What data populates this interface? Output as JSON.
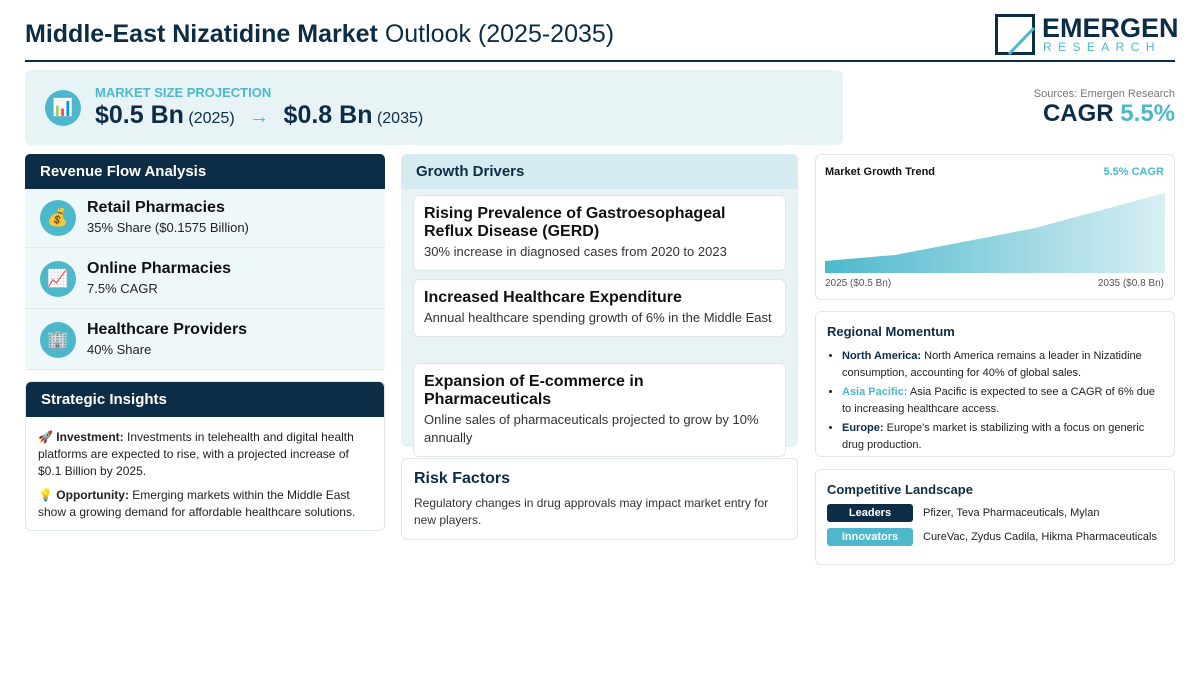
{
  "header": {
    "title_bold": "Middle-East Nizatidine Market",
    "title_rest": "Outlook (2025-2035)",
    "logo_name": "EMERGEN",
    "logo_sub": "RESEARCH"
  },
  "projection": {
    "icon": "📊",
    "label": "MARKET SIZE PROJECTION",
    "start_value": "$0.5 Bn",
    "start_year": "(2025)",
    "arrow": "→",
    "end_value": "$0.8 Bn",
    "end_year": "(2035)"
  },
  "sources": "Sources: Emergen Research",
  "cagr": {
    "label": "CAGR",
    "value": "5.5%"
  },
  "revenue_flow": {
    "title": "Revenue Flow Analysis",
    "items": [
      {
        "icon": "💰",
        "name": "Retail Pharmacies",
        "detail": "35% Share ($0.1575 Billion)"
      },
      {
        "icon": "📈",
        "name": "Online Pharmacies",
        "detail": "7.5% CAGR"
      },
      {
        "icon": "🏢",
        "name": "Healthcare Providers",
        "detail": "40% Share"
      }
    ]
  },
  "strategic_insights": {
    "title": "Strategic Insights",
    "items": [
      {
        "icon": "🚀",
        "label": "Investment:",
        "text": "Investments in telehealth and digital health platforms are expected to rise, with a projected increase of $0.1 Billion by 2025."
      },
      {
        "icon": "💡",
        "label": "Opportunity:",
        "text": "Emerging markets within the Middle East show a growing demand for affordable healthcare solutions."
      }
    ]
  },
  "growth_drivers": {
    "title": "Growth Drivers",
    "items": [
      {
        "title": "Rising Prevalence of Gastroesophageal Reflux Disease (GERD)",
        "text": "30% increase in diagnosed cases from 2020 to 2023"
      },
      {
        "title": "Increased Healthcare Expenditure",
        "text": "Annual healthcare spending growth of 6% in the Middle East"
      },
      {
        "title": "Expansion of E-commerce in Pharmaceuticals",
        "text": "Online sales of pharmaceuticals projected to grow by 10% annually"
      }
    ]
  },
  "risk_factors": {
    "title": "Risk Factors",
    "text": "Regulatory changes in drug approvals may impact market entry for new players."
  },
  "market_growth_trend": {
    "title": "Market Growth Trend",
    "cagr": "5.5% CAGR",
    "start_label": "2025 ($0.5 Bn)",
    "end_label": "2035 ($0.8 Bn)"
  },
  "regional_momentum": {
    "title": "Regional Momentum",
    "items": [
      {
        "region": "North America:",
        "text": "North America remains a leader in Nizatidine consumption, accounting for 40% of global sales."
      },
      {
        "region": "Asia Pacific:",
        "text": "Asia Pacific is expected to see a CAGR of 6% due to increasing healthcare access."
      },
      {
        "region": "Europe:",
        "text": "Europe's market is stabilizing with a focus on generic drug production."
      }
    ]
  },
  "competitive_landscape": {
    "title": "Competitive Landscape",
    "rows": [
      {
        "tag": "Leaders",
        "companies": "Pfizer, Teva Pharmaceuticals, Mylan"
      },
      {
        "tag": "Innovators",
        "companies": "CureVac, Zydus Cadila, Hikma Pharmaceuticals"
      }
    ]
  }
}
